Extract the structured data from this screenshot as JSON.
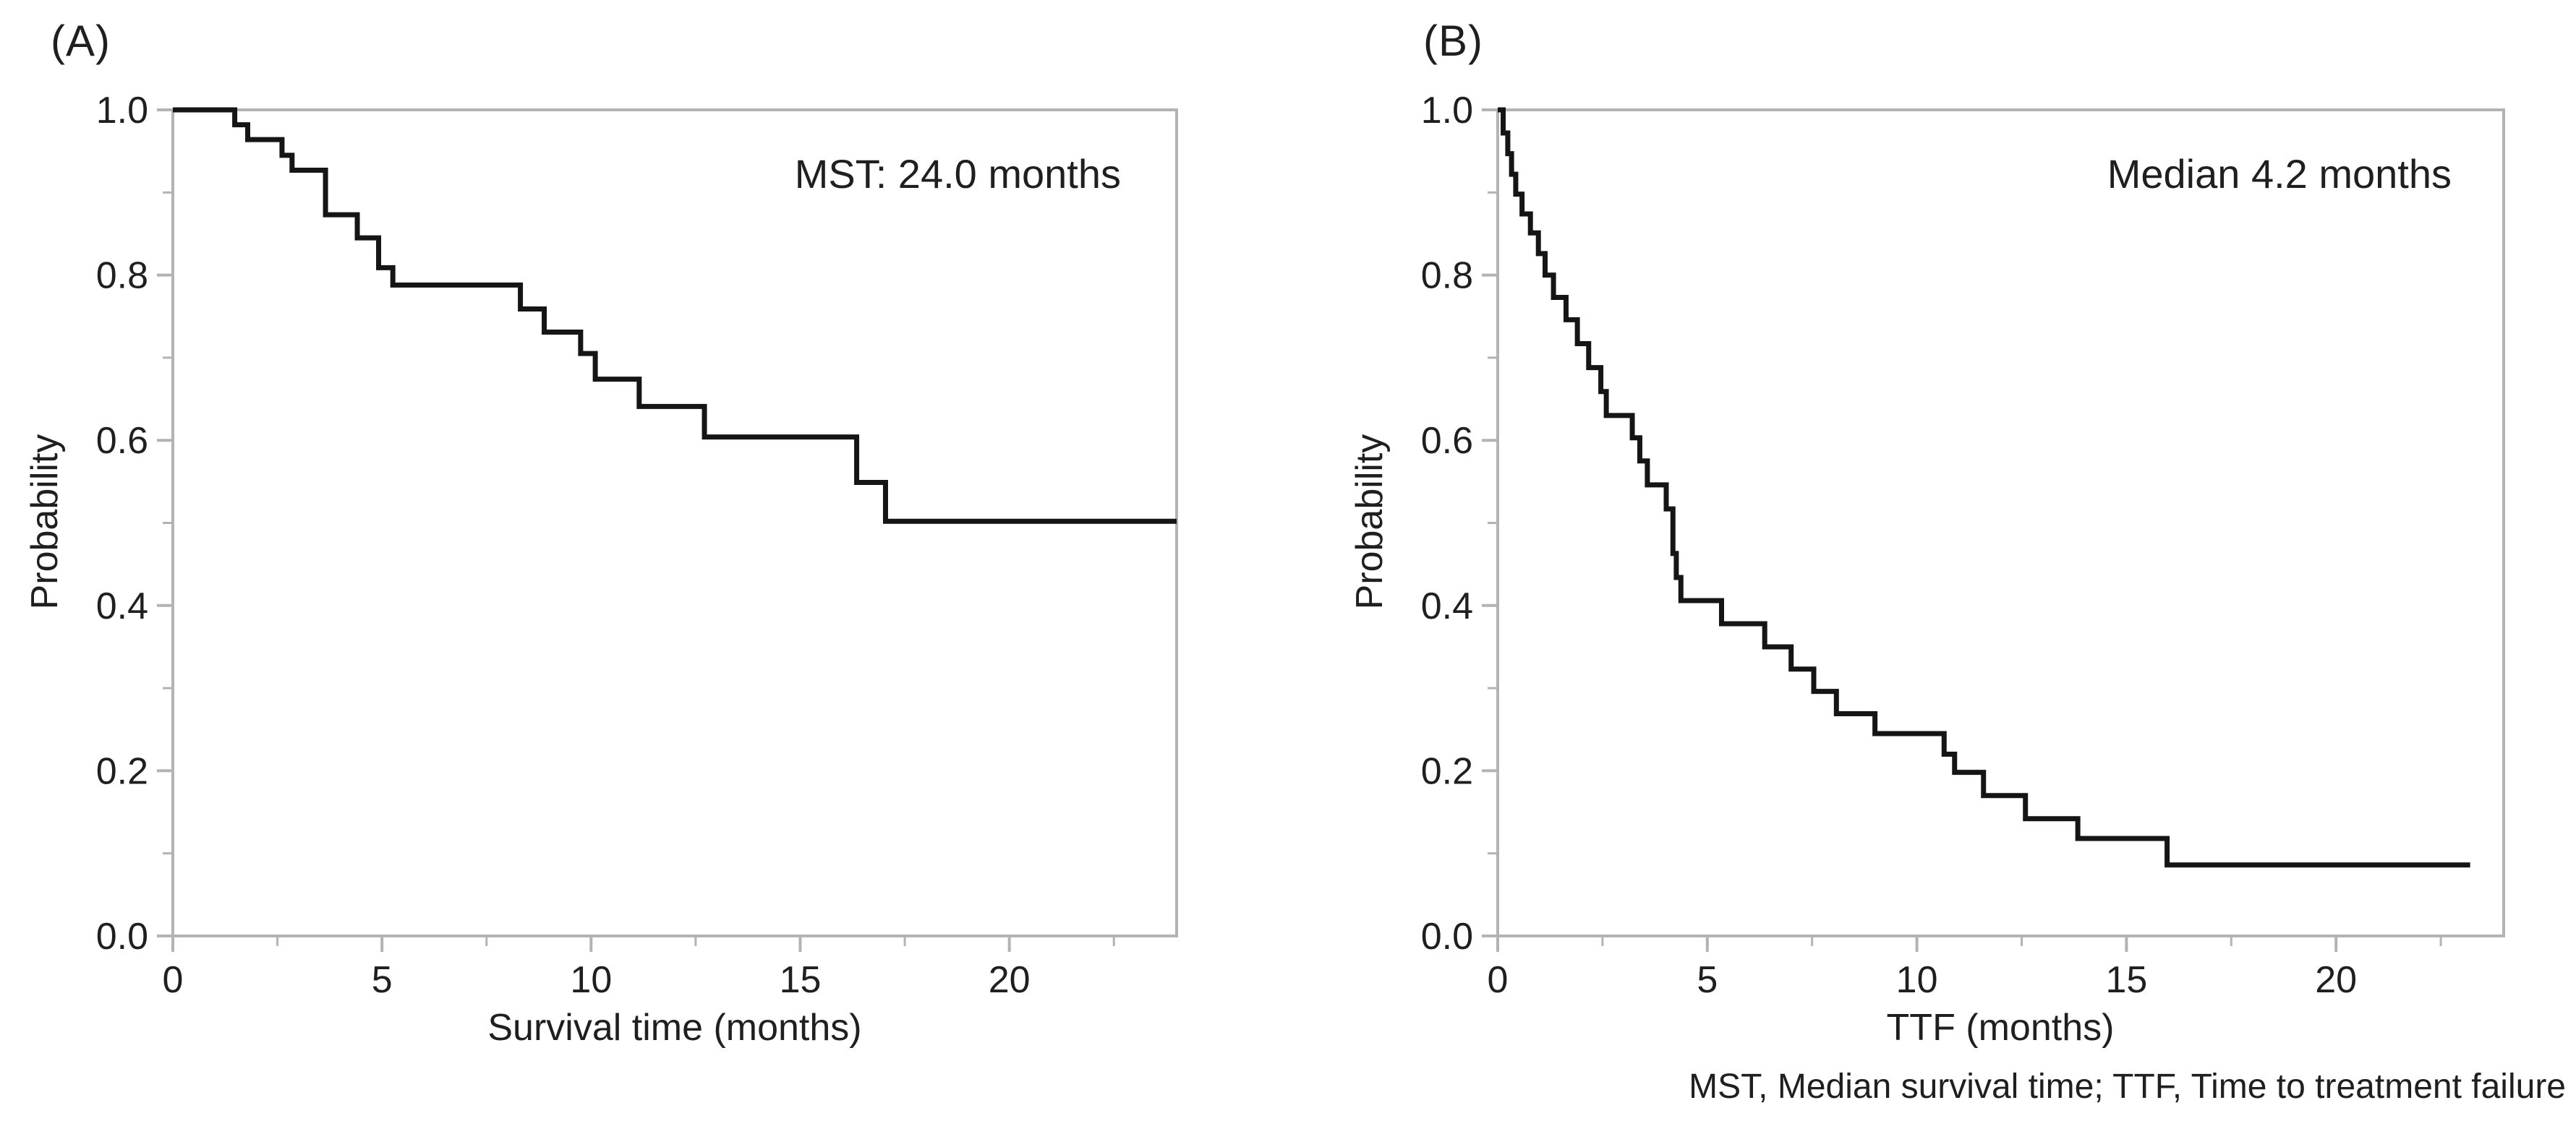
{
  "figure": {
    "caption": "MST, Median survival time; TTF, Time to treatment failure",
    "background": "#ffffff",
    "text_color": "#1f1f1f",
    "frame_color": "#b3b3b3",
    "curve_color": "#151515"
  },
  "chart_data": [
    {
      "type": "line",
      "subtype": "kaplan-meier-step",
      "panel_label": "(A)",
      "annotation": "MST: 24.0 months",
      "xlabel": "Survival time (months)",
      "ylabel": "Probability",
      "xlim": [
        0,
        24
      ],
      "ylim": [
        0.0,
        1.0
      ],
      "grid": false,
      "legend": null,
      "xticks": {
        "values": [
          0,
          5,
          10,
          15,
          20
        ],
        "labels": [
          "0",
          "5",
          "10",
          "15",
          "20"
        ],
        "minor": [
          2.5,
          7.5,
          12.5,
          17.5,
          22.5
        ]
      },
      "yticks": {
        "values": [
          1.0,
          0.8,
          0.6,
          0.4,
          0.2,
          0.0
        ],
        "labels": [
          "1.0",
          "0.8",
          "0.6",
          "0.4",
          "0.2",
          "0.0"
        ],
        "minor": [
          0.9,
          0.7,
          0.5,
          0.3,
          0.1
        ]
      },
      "steps": [
        [
          0.0,
          1.0
        ],
        [
          1.48,
          0.982
        ],
        [
          1.79,
          0.964
        ],
        [
          2.61,
          0.945
        ],
        [
          2.85,
          0.927
        ],
        [
          3.65,
          0.873
        ],
        [
          4.41,
          0.845
        ],
        [
          4.92,
          0.809
        ],
        [
          5.26,
          0.788
        ],
        [
          8.31,
          0.759
        ],
        [
          8.88,
          0.731
        ],
        [
          9.75,
          0.705
        ],
        [
          10.1,
          0.674
        ],
        [
          11.15,
          0.641
        ],
        [
          12.71,
          0.604
        ],
        [
          16.35,
          0.549
        ],
        [
          17.04,
          0.502
        ]
      ],
      "end_time": 24.0,
      "median_months": 24.0
    },
    {
      "type": "line",
      "subtype": "kaplan-meier-step",
      "panel_label": "(B)",
      "annotation": "Median 4.2 months",
      "xlabel": "TTF (months)",
      "ylabel": "Probability",
      "xlim": [
        0,
        24
      ],
      "ylim": [
        0.0,
        1.0
      ],
      "grid": false,
      "legend": null,
      "xticks": {
        "values": [
          0,
          5,
          10,
          15,
          20
        ],
        "labels": [
          "0",
          "5",
          "10",
          "15",
          "20"
        ],
        "minor": [
          2.5,
          7.5,
          12.5,
          17.5,
          22.5
        ]
      },
      "yticks": {
        "values": [
          1.0,
          0.8,
          0.6,
          0.4,
          0.2,
          0.0
        ],
        "labels": [
          "1.0",
          "0.8",
          "0.6",
          "0.4",
          "0.2",
          "0.0"
        ],
        "minor": [
          0.9,
          0.7,
          0.5,
          0.3,
          0.1
        ]
      },
      "steps": [
        [
          0.0,
          1.0
        ],
        [
          0.13,
          0.972
        ],
        [
          0.24,
          0.947
        ],
        [
          0.33,
          0.922
        ],
        [
          0.43,
          0.898
        ],
        [
          0.58,
          0.874
        ],
        [
          0.78,
          0.851
        ],
        [
          0.97,
          0.826
        ],
        [
          1.13,
          0.8
        ],
        [
          1.33,
          0.773
        ],
        [
          1.63,
          0.746
        ],
        [
          1.9,
          0.717
        ],
        [
          2.17,
          0.688
        ],
        [
          2.46,
          0.659
        ],
        [
          2.59,
          0.63
        ],
        [
          3.21,
          0.603
        ],
        [
          3.39,
          0.575
        ],
        [
          3.57,
          0.546
        ],
        [
          4.02,
          0.517
        ],
        [
          4.18,
          0.463
        ],
        [
          4.26,
          0.434
        ],
        [
          4.37,
          0.406
        ],
        [
          5.34,
          0.378
        ],
        [
          6.37,
          0.35
        ],
        [
          7.0,
          0.323
        ],
        [
          7.54,
          0.296
        ],
        [
          8.08,
          0.269
        ],
        [
          9.0,
          0.245
        ],
        [
          10.65,
          0.22
        ],
        [
          10.9,
          0.198
        ],
        [
          11.59,
          0.17
        ],
        [
          12.59,
          0.142
        ],
        [
          13.84,
          0.118
        ],
        [
          15.97,
          0.086
        ]
      ],
      "end_time": 23.2,
      "median_months": 4.2
    }
  ]
}
